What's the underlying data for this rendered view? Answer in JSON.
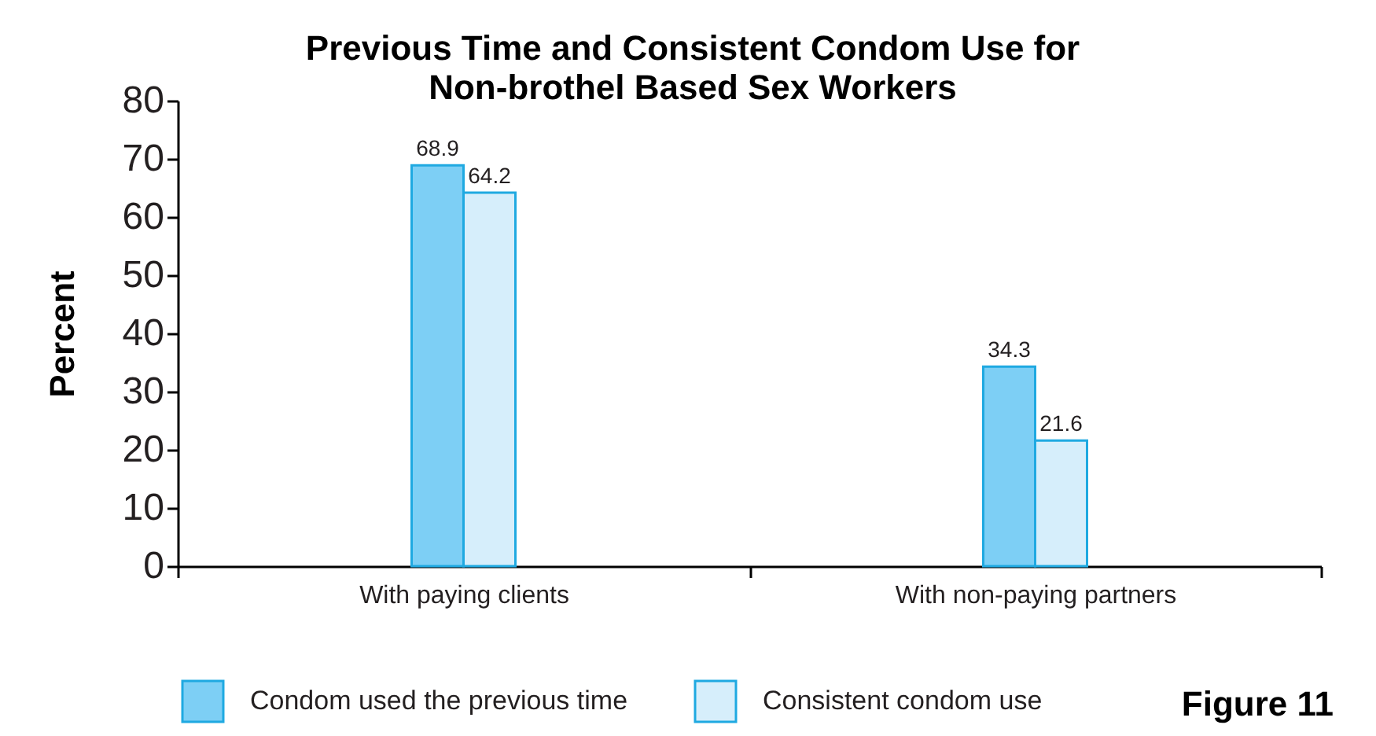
{
  "chart_data": {
    "type": "bar",
    "title": "Previous Time and Consistent Condom Use for\nNon-brothel Based Sex Workers",
    "ylabel": "Percent",
    "categories": [
      "With paying clients",
      "With non-paying partners"
    ],
    "series": [
      {
        "name": "Condom used the previous time",
        "color": "#7dcff5",
        "values": [
          68.9,
          34.3
        ]
      },
      {
        "name": "Consistent condom use",
        "color": "#d6eefb",
        "values": [
          64.2,
          21.6
        ]
      }
    ],
    "ylim": [
      0,
      80
    ],
    "yticks": [
      0,
      10,
      20,
      30,
      40,
      50,
      60,
      70,
      80
    ],
    "grid": false,
    "legend": "bottom",
    "data_labels": true,
    "annotations": [
      "Figure 11"
    ]
  }
}
